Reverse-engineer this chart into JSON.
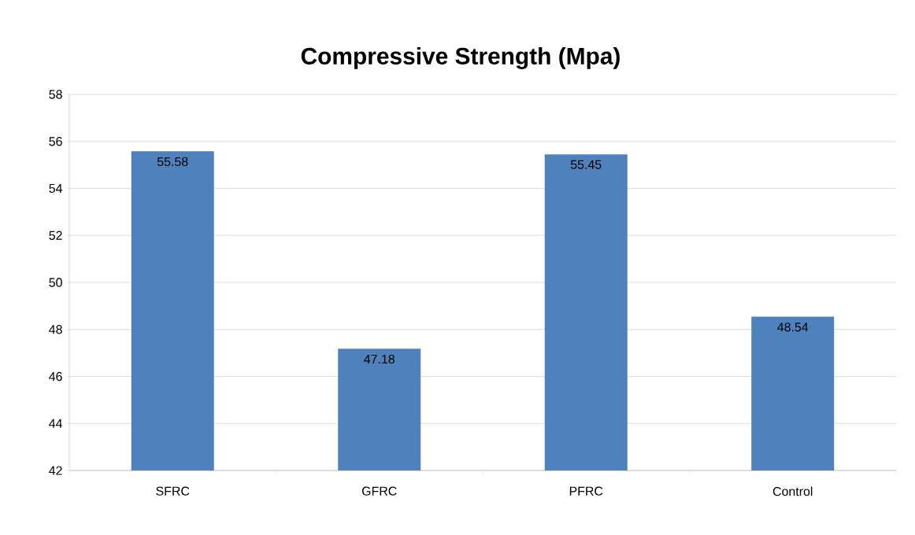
{
  "chart_data": {
    "type": "bar",
    "title": "Compressive Strength (Mpa)",
    "categories": [
      "SFRC",
      "GFRC",
      "PFRC",
      "Control"
    ],
    "values": [
      55.58,
      47.18,
      55.45,
      48.54
    ],
    "value_labels": [
      "55.58",
      "47.18",
      "55.45",
      "48.54"
    ],
    "color": "#4f81bd",
    "ylim": [
      42,
      58
    ],
    "yticks": [
      42,
      44,
      46,
      48,
      50,
      52,
      54,
      56,
      58
    ],
    "grid": "y"
  }
}
